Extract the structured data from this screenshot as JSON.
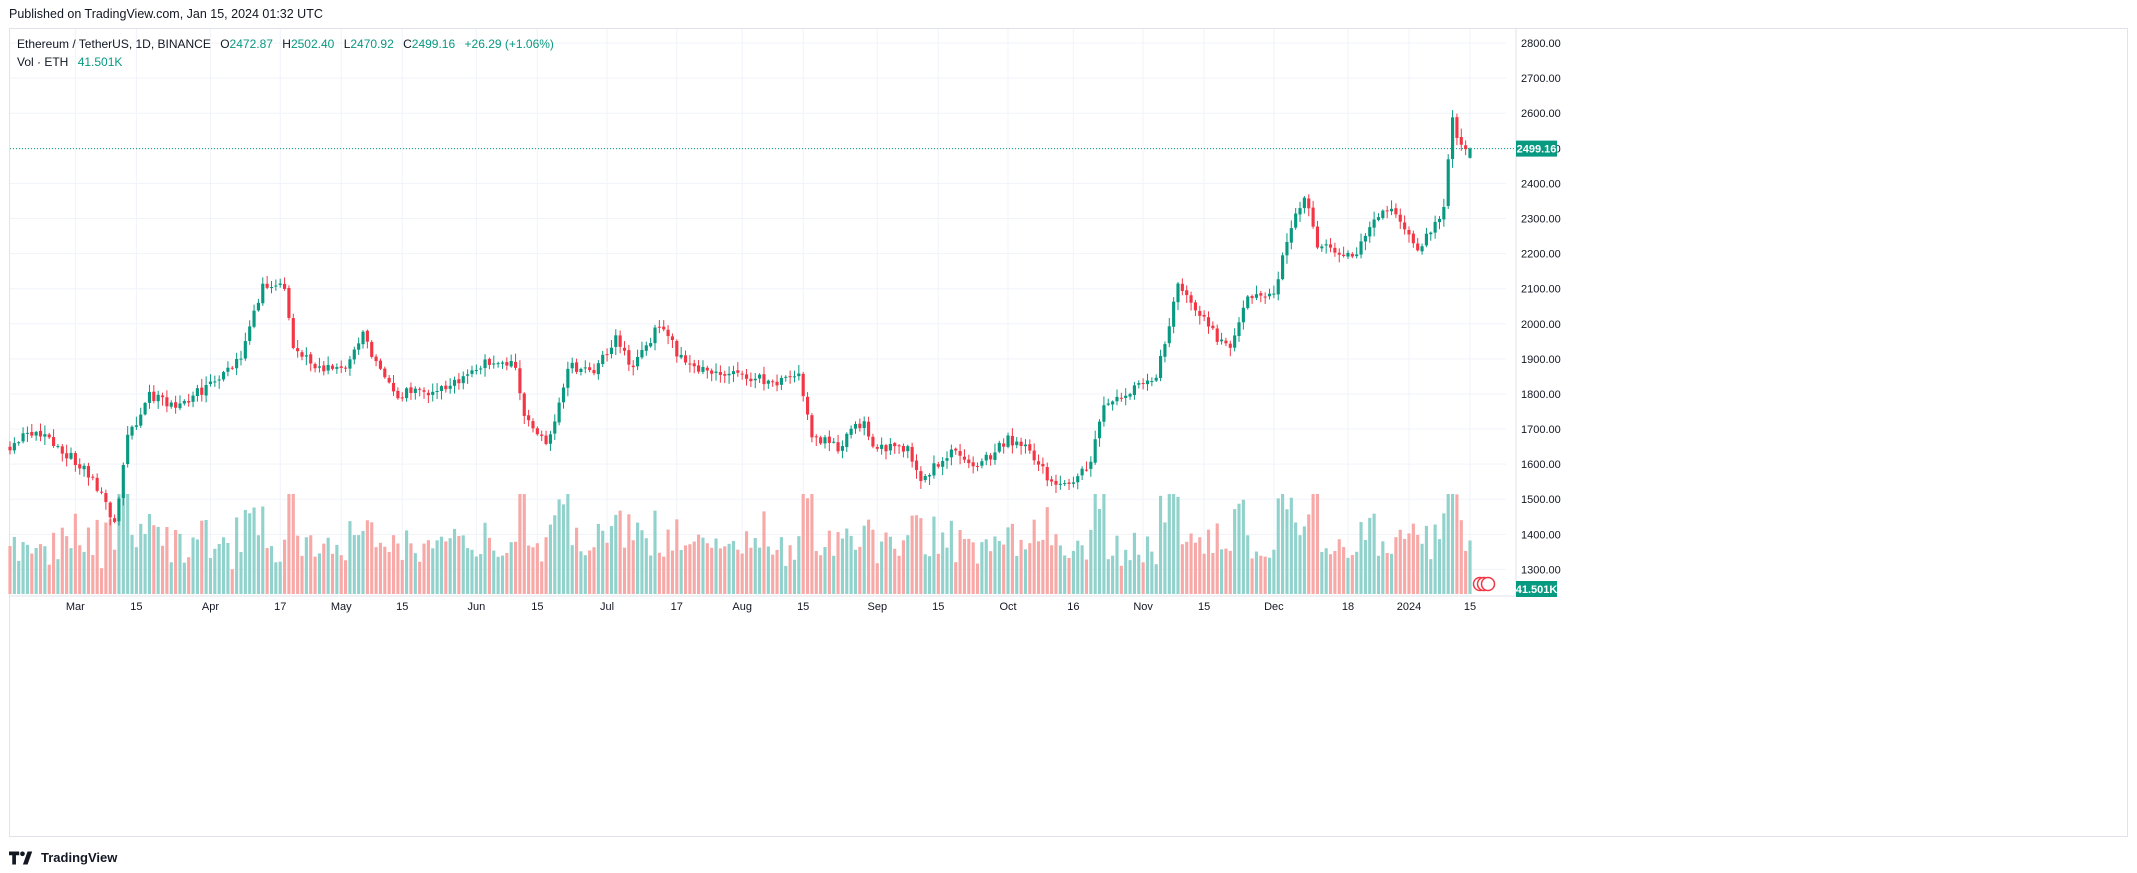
{
  "header": {
    "published": "Published on TradingView.com, Jan 15, 2024 01:32 UTC"
  },
  "legend": {
    "symbol": "Ethereum / TetherUS, 1D, BINANCE",
    "open_label": "O",
    "open": "2472.87",
    "high_label": "H",
    "high": "2502.40",
    "low_label": "L",
    "low": "2470.92",
    "close_label": "C",
    "close": "2499.16",
    "change": "+26.29 (+1.06%)",
    "volume_label": "Vol · ETH",
    "volume": "41.501K"
  },
  "footer": {
    "brand": "TradingView"
  },
  "colors": {
    "up": "#089981",
    "down": "#f23645",
    "up_vol": "#92d2cc",
    "down_vol": "#f7a9a7",
    "grid": "#f0f3fa",
    "accent": "#089981"
  },
  "chart_data": {
    "type": "candlestick",
    "instrument": "Ethereum / TetherUS",
    "interval": "1D",
    "exchange": "BINANCE",
    "ylim": [
      1230,
      2840
    ],
    "y_ticks": [
      "1300.00",
      "1400.00",
      "1500.00",
      "1600.00",
      "1700.00",
      "1800.00",
      "1900.00",
      "2000.00",
      "2100.00",
      "2200.00",
      "2300.00",
      "2400.00",
      "2500.00",
      "2600.00",
      "2700.00",
      "2800.00"
    ],
    "x_ticks": [
      {
        "label": "Mar",
        "date": "2023-03-01"
      },
      {
        "label": "15",
        "date": "2023-03-15"
      },
      {
        "label": "Apr",
        "date": "2023-04-01"
      },
      {
        "label": "17",
        "date": "2023-04-17"
      },
      {
        "label": "May",
        "date": "2023-05-01"
      },
      {
        "label": "15",
        "date": "2023-05-15"
      },
      {
        "label": "Jun",
        "date": "2023-06-01"
      },
      {
        "label": "15",
        "date": "2023-06-15"
      },
      {
        "label": "Jul",
        "date": "2023-07-01"
      },
      {
        "label": "17",
        "date": "2023-07-17"
      },
      {
        "label": "Aug",
        "date": "2023-08-01"
      },
      {
        "label": "15",
        "date": "2023-08-15"
      },
      {
        "label": "Sep",
        "date": "2023-09-01"
      },
      {
        "label": "15",
        "date": "2023-09-15"
      },
      {
        "label": "Oct",
        "date": "2023-10-01"
      },
      {
        "label": "16",
        "date": "2023-10-16"
      },
      {
        "label": "Nov",
        "date": "2023-11-01"
      },
      {
        "label": "15",
        "date": "2023-11-15"
      },
      {
        "label": "Dec",
        "date": "2023-12-01"
      },
      {
        "label": "18",
        "date": "2023-12-18"
      },
      {
        "label": "2024",
        "date": "2024-01-01"
      },
      {
        "label": "15",
        "date": "2024-01-15"
      }
    ],
    "last_price": 2499.16,
    "last_price_label": "2499.16",
    "last_volume_label": "41.501K",
    "close_anchors": [
      [
        "2023-02-14",
        1650
      ],
      [
        "2023-02-20",
        1700
      ],
      [
        "2023-02-27",
        1630
      ],
      [
        "2023-03-05",
        1560
      ],
      [
        "2023-03-10",
        1430
      ],
      [
        "2023-03-13",
        1670
      ],
      [
        "2023-03-18",
        1800
      ],
      [
        "2023-03-24",
        1760
      ],
      [
        "2023-03-31",
        1820
      ],
      [
        "2023-04-08",
        1900
      ],
      [
        "2023-04-13",
        2110
      ],
      [
        "2023-04-18",
        2100
      ],
      [
        "2023-04-20",
        1940
      ],
      [
        "2023-04-26",
        1870
      ],
      [
        "2023-05-02",
        1880
      ],
      [
        "2023-05-06",
        1970
      ],
      [
        "2023-05-10",
        1860
      ],
      [
        "2023-05-14",
        1800
      ],
      [
        "2023-05-21",
        1810
      ],
      [
        "2023-05-28",
        1830
      ],
      [
        "2023-06-03",
        1890
      ],
      [
        "2023-06-10",
        1880
      ],
      [
        "2023-06-12",
        1750
      ],
      [
        "2023-06-17",
        1660
      ],
      [
        "2023-06-19",
        1710
      ],
      [
        "2023-06-22",
        1880
      ],
      [
        "2023-06-28",
        1860
      ],
      [
        "2023-07-03",
        1960
      ],
      [
        "2023-07-07",
        1870
      ],
      [
        "2023-07-13",
        2000
      ],
      [
        "2023-07-18",
        1900
      ],
      [
        "2023-07-25",
        1860
      ],
      [
        "2023-07-31",
        1860
      ],
      [
        "2023-08-08",
        1830
      ],
      [
        "2023-08-14",
        1850
      ],
      [
        "2023-08-17",
        1680
      ],
      [
        "2023-08-23",
        1650
      ],
      [
        "2023-08-29",
        1730
      ],
      [
        "2023-08-31",
        1650
      ],
      [
        "2023-09-08",
        1640
      ],
      [
        "2023-09-11",
        1550
      ],
      [
        "2023-09-18",
        1640
      ],
      [
        "2023-09-24",
        1590
      ],
      [
        "2023-10-01",
        1670
      ],
      [
        "2023-10-04",
        1660
      ],
      [
        "2023-10-09",
        1580
      ],
      [
        "2023-10-12",
        1540
      ],
      [
        "2023-10-16",
        1560
      ],
      [
        "2023-10-20",
        1600
      ],
      [
        "2023-10-23",
        1780
      ],
      [
        "2023-10-31",
        1820
      ],
      [
        "2023-11-04",
        1850
      ],
      [
        "2023-11-09",
        2110
      ],
      [
        "2023-11-13",
        2050
      ],
      [
        "2023-11-18",
        1960
      ],
      [
        "2023-11-21",
        1930
      ],
      [
        "2023-11-25",
        2070
      ],
      [
        "2023-12-01",
        2080
      ],
      [
        "2023-12-03",
        2200
      ],
      [
        "2023-12-08",
        2370
      ],
      [
        "2023-12-11",
        2230
      ],
      [
        "2023-12-16",
        2200
      ],
      [
        "2023-12-20",
        2200
      ],
      [
        "2023-12-24",
        2310
      ],
      [
        "2023-12-28",
        2340
      ],
      [
        "2024-01-03",
        2210
      ],
      [
        "2024-01-09",
        2330
      ],
      [
        "2024-01-11",
        2590
      ],
      [
        "2024-01-12",
        2520
      ],
      [
        "2024-01-15",
        2499
      ]
    ]
  }
}
